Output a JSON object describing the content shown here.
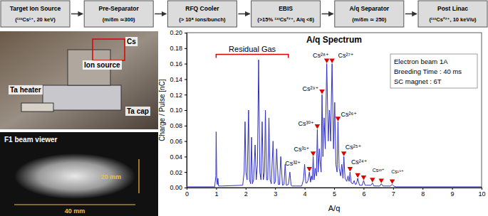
{
  "flow": {
    "boxes": [
      {
        "title": "Target Ion Source",
        "detail": "(¹³³Cs¹⁺, 20 keV)"
      },
      {
        "title": "Pre-Separator",
        "detail": "(m/δm ≃300)"
      },
      {
        "title": "RFQ Cooler",
        "detail": "(> 10⁸ ions/bunch)"
      },
      {
        "title": "EBIS",
        "detail": "(>15% ¹³³Cs²⁷⁺, A/q <6)"
      },
      {
        "title": "A/q Separator",
        "detail": "(m/δm ≃ 250)"
      },
      {
        "title": "Post Linac",
        "detail": "(¹³³Cs²⁷⁺, 10 keV/u)"
      }
    ]
  },
  "photo": {
    "labels": [
      "Cs",
      "Ion source",
      "Ta heater",
      "Ta cap"
    ]
  },
  "beam_viewer": {
    "title": "F1 beam viewer",
    "height": "20 mm",
    "width": "40 mm"
  },
  "chart_data": {
    "type": "line",
    "title": "A/q Spectrum",
    "x_label": "A/q",
    "y_label": "Charge / Pulse [nC]",
    "color": "#3030c8",
    "x": [
      0,
      0.95,
      0.99,
      1.0,
      1.02,
      1.04,
      1.06,
      1.08,
      1.2,
      1.9,
      1.95,
      1.98,
      2.01,
      2.05,
      2.1,
      2.13,
      2.17,
      2.2,
      2.23,
      2.27,
      2.32,
      2.36,
      2.4,
      2.44,
      2.48,
      2.52,
      2.56,
      2.6,
      2.64,
      2.67,
      2.71,
      2.75,
      2.79,
      2.83,
      2.87,
      2.93,
      2.97,
      3.01,
      3.05,
      3.11,
      3.15,
      3.19,
      3.25,
      3.3,
      3.34,
      3.38,
      3.45,
      3.5,
      3.54,
      3.58,
      3.7,
      3.9,
      3.96,
      4.0,
      4.04,
      4.08,
      4.12,
      4.16,
      4.2,
      4.23,
      4.26,
      4.29,
      4.32,
      4.36,
      4.4,
      4.43,
      4.46,
      4.5,
      4.53,
      4.56,
      4.59,
      4.62,
      4.66,
      4.7,
      4.75,
      4.8,
      4.84,
      4.88,
      4.93,
      4.98,
      5.02,
      5.06,
      5.1,
      5.13,
      5.17,
      5.22,
      5.26,
      5.3,
      5.33,
      5.37,
      5.43,
      5.47,
      5.51,
      5.54,
      5.58,
      5.64,
      5.68,
      5.72,
      5.76,
      5.8,
      5.86,
      5.95,
      6.0,
      6.05,
      6.1,
      6.25,
      6.3,
      6.35,
      6.55,
      6.6,
      6.66,
      6.72,
      6.9,
      6.97,
      7.02,
      7.1,
      8,
      9,
      10
    ],
    "values": [
      0.001,
      0.001,
      0.015,
      0.072,
      0.01,
      0.004,
      0.012,
      0.002,
      0.002,
      0.003,
      0.02,
      0.085,
      0.02,
      0.01,
      0.1,
      0.01,
      0.005,
      0.065,
      0.005,
      0.01,
      0.055,
      0.01,
      0.03,
      0.165,
      0.02,
      0.01,
      0.085,
      0.01,
      0.02,
      0.1,
      0.01,
      0.01,
      0.09,
      0.01,
      0.005,
      0.06,
      0.005,
      0.008,
      0.05,
      0.004,
      0.004,
      0.04,
      0.003,
      0.004,
      0.03,
      0.003,
      0.004,
      0.02,
      0.003,
      0.002,
      0.002,
      0.002,
      0.01,
      0.03,
      0.006,
      0.006,
      0.01,
      0.02,
      0.007,
      0.015,
      0.01,
      0.04,
      0.01,
      0.025,
      0.015,
      0.075,
      0.02,
      0.05,
      0.03,
      0.02,
      0.12,
      0.04,
      0.09,
      0.05,
      0.16,
      0.06,
      0.1,
      0.06,
      0.16,
      0.05,
      0.11,
      0.03,
      0.02,
      0.085,
      0.025,
      0.015,
      0.03,
      0.012,
      0.04,
      0.012,
      0.008,
      0.015,
      0.008,
      0.02,
      0.006,
      0.005,
      0.009,
      0.004,
      0.005,
      0.012,
      0.003,
      0.003,
      0.009,
      0.003,
      0.003,
      0.003,
      0.006,
      0.002,
      0.002,
      0.005,
      0.002,
      0.002,
      0.002,
      0.004,
      0.002,
      0.001,
      0.001,
      0.001,
      0.001
    ],
    "xlim": [
      0,
      10
    ],
    "xticks": [
      0,
      1,
      2,
      3,
      4,
      5,
      6,
      7,
      8,
      9,
      10
    ],
    "ylim": [
      0,
      0.2
    ],
    "yticks": [
      {
        "value": 0,
        "label": "0.00"
      },
      {
        "value": 0.02,
        "label": "0.02"
      },
      {
        "value": 0.04,
        "label": "0.04"
      },
      {
        "value": 0.06,
        "label": "0.06"
      },
      {
        "value": 0.08,
        "label": "0.08"
      },
      {
        "value": 0.1,
        "label": "0.10"
      },
      {
        "value": 0.12,
        "label": "0.12"
      },
      {
        "value": 0.14,
        "label": "0.14"
      },
      {
        "value": 0.16,
        "label": "0.16"
      },
      {
        "value": 0.18,
        "label": "0.18"
      },
      {
        "value": 0.2,
        "label": "0.20"
      }
    ],
    "markers": {
      "x": [
        4.16,
        4.29,
        4.43,
        4.59,
        4.75,
        4.93,
        5.13,
        5.33,
        5.54,
        5.8,
        6.0,
        6.3,
        6.6,
        6.97
      ],
      "values": [
        0.02,
        0.04,
        0.075,
        0.12,
        0.16,
        0.16,
        0.085,
        0.04,
        0.02,
        0.012,
        0.009,
        0.006,
        0.005,
        0.004
      ],
      "color": "#e00000",
      "marker": "triangle-down"
    },
    "annotations": [
      {
        "text": "Cs³²⁺",
        "x": 3.6,
        "y": 0.028
      },
      {
        "text": "Cs³¹⁺",
        "x": 3.9,
        "y": 0.047
      },
      {
        "text": "Cs³⁰⁺",
        "x": 4.05,
        "y": 0.08
      },
      {
        "text": "Cs²⁹⁺",
        "x": 4.2,
        "y": 0.125
      },
      {
        "text": "Cs²⁸⁺",
        "x": 4.55,
        "y": 0.168
      },
      {
        "text": "Cs²⁷⁺",
        "x": 5.4,
        "y": 0.168
      },
      {
        "text": "Cs²⁶⁺",
        "x": 5.5,
        "y": 0.092
      },
      {
        "text": "Cs²⁵⁺",
        "x": 5.65,
        "y": 0.05
      },
      {
        "text": "Cs²⁴⁺",
        "x": 5.85,
        "y": 0.03
      },
      {
        "text": "Cs²³⁺",
        "x": 6.5,
        "y": 0.02
      },
      {
        "text": "Cs¹⁹⁺",
        "x": 7.15,
        "y": 0.018
      }
    ],
    "bracket": {
      "text": "Residual Gas",
      "x": [
        1.0,
        3.45
      ],
      "y": 0.172,
      "color": "#e00000"
    },
    "info": [
      "Electron beam 1A",
      "Breeding Time : 40 ms",
      "SC magnet : 6T"
    ]
  }
}
